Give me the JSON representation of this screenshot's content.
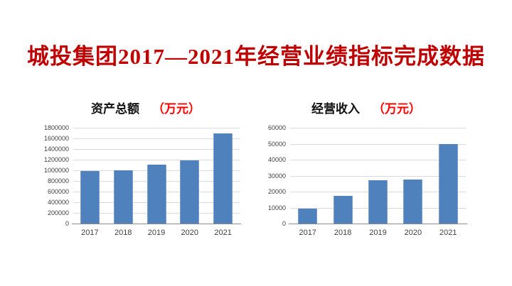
{
  "title": "城投集团2017—2021年经营业绩指标完成数据",
  "colors": {
    "title": "#c00000",
    "unit_label": "#ff0000",
    "bar": "#4f81bd",
    "gridline": "#d9d9d9"
  },
  "chart_data": [
    {
      "type": "bar",
      "title": "资产总额",
      "unit_label": "（万元）",
      "categories": [
        "2017",
        "2018",
        "2019",
        "2020",
        "2021"
      ],
      "values": [
        990000,
        1000000,
        1110000,
        1190000,
        1690000
      ],
      "xlabel": "",
      "ylabel": "",
      "ylim": [
        0,
        1800000
      ],
      "ytick_step": 200000,
      "yticks": [
        0,
        200000,
        400000,
        600000,
        800000,
        1000000,
        1200000,
        1400000,
        1600000,
        1800000
      ],
      "grid": "horizontal",
      "legend": "none"
    },
    {
      "type": "bar",
      "title": "经营收入",
      "unit_label": "（万元）",
      "categories": [
        "2017",
        "2018",
        "2019",
        "2020",
        "2021"
      ],
      "values": [
        9500,
        17500,
        27300,
        27600,
        49700
      ],
      "xlabel": "",
      "ylabel": "",
      "ylim": [
        0,
        60000
      ],
      "ytick_step": 10000,
      "yticks": [
        0,
        10000,
        20000,
        30000,
        40000,
        50000,
        60000
      ],
      "grid": "horizontal",
      "legend": "none"
    }
  ]
}
